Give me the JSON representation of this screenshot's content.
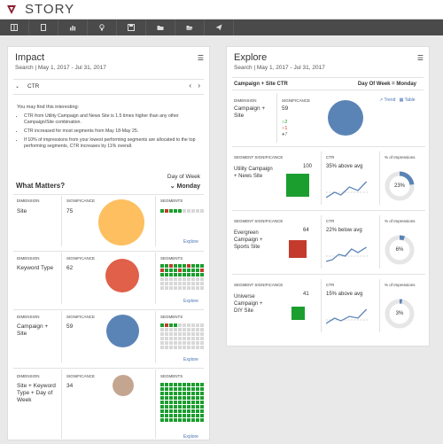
{
  "app": {
    "title": "STORY"
  },
  "colors": {
    "orange": "#fdbf60",
    "red": "#e0604a",
    "blue": "#5b84b6",
    "tan": "#c4a590",
    "green": "#1b9e2e",
    "darkred": "#c43a2c",
    "gray": "#e6e6e6"
  },
  "toolbar_icons": [
    "dashboard-icon",
    "document-icon",
    "chart-icon",
    "lightbulb-icon",
    "save-icon",
    "folder-icon",
    "folder-open-icon",
    "send-icon"
  ],
  "impact": {
    "title": "Impact",
    "subtitle": "Search  |  May 1, 2017 - Jul 31, 2017",
    "metric": "CTR",
    "intro": "You may find this interesting:",
    "insights": [
      "CTR from Utility Campaign and News Site is 1.5 times higher than any other Campaign/Site combination.",
      "CTR increased for most segments from May 18-May 25.",
      "If 10% of impressions from your lowest performing segments are allocated to the top performing segments, CTR increases by 11% overall."
    ],
    "what_matters": "What Matters?",
    "day_label": "Day of Week",
    "day_value": "Monday",
    "col_dimension": "DIMENSION",
    "col_significance": "SIGNIFICANCE",
    "col_segments": "SEGMENTS",
    "explore_link": "Explore",
    "rows": [
      {
        "dimension": "Site",
        "significance": "75"
      },
      {
        "dimension": "Keyword Type",
        "significance": "62"
      },
      {
        "dimension": "Campaign + Site",
        "significance": "59"
      },
      {
        "dimension": "Site + Keyword Type + Day of Week",
        "significance": "34"
      }
    ]
  },
  "explore": {
    "title": "Explore",
    "subtitle": "Search  |  May 1, 2017 - Jul 31, 2017",
    "heading": "Campaign + Site  CTR",
    "day_value": "Day Of Week = Monday",
    "col_dimension": "DIMENSION",
    "col_significance": "SIGNIFICANCE",
    "dimension": "Campaign + Site",
    "significance": "59",
    "up_count": "2",
    "down_count": "1",
    "neutral_count": "7",
    "trend_link": "Trend",
    "table_link": "Table",
    "col_segsig": "SEGMENT SIGNIFICANCE",
    "col_ctr": "CTR",
    "col_impr": "% of Impressions",
    "segments": [
      {
        "name": "Utility Campaign + News Site",
        "significance": "100",
        "ctr_text": "35% above avg",
        "impressions": "23%",
        "impr_fraction": 0.23
      },
      {
        "name": "Evergreen Campaign + Sports Site",
        "significance": "64",
        "ctr_text": "22% below avg",
        "impressions": "6%",
        "impr_fraction": 0.06
      },
      {
        "name": "Universe Campaign + DIY Site",
        "significance": "41",
        "ctr_text": "15% above avg",
        "impressions": "3%",
        "impr_fraction": 0.03
      }
    ]
  }
}
